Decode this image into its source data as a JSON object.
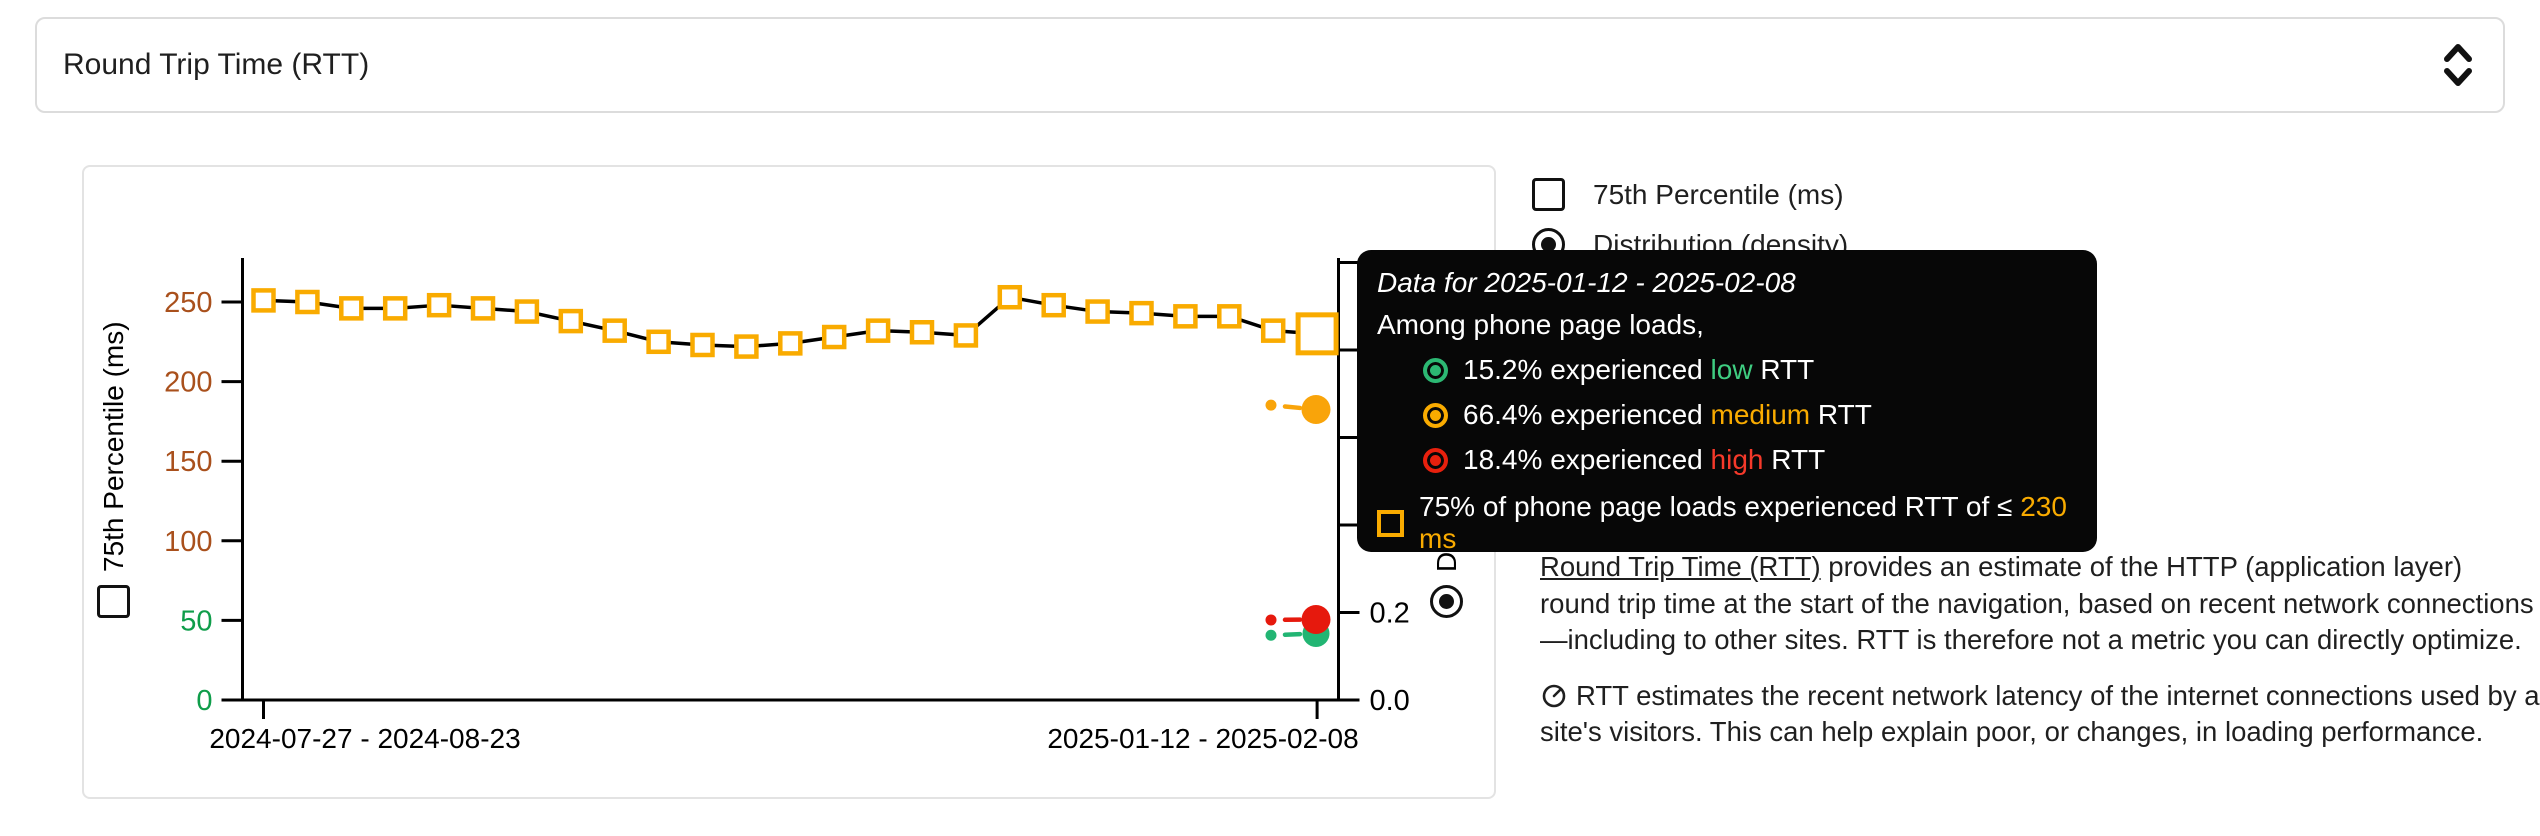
{
  "metric_selector": {
    "value": "Round Trip Time (RTT)",
    "icon": "unfold-more-icon"
  },
  "legend": {
    "items": [
      {
        "label": "75th Percentile (ms)",
        "control": "checkbox",
        "checked": false
      },
      {
        "label": "Distribution (density)",
        "control": "radio",
        "selected": true
      }
    ]
  },
  "chart_data": {
    "type": "line",
    "x_axis": {
      "tick_labels": [
        "2024-07-27 - 2024-08-23",
        "2025-01-12 - 2025-02-08"
      ],
      "tick_indices": [
        0,
        24
      ]
    },
    "y_axis_left": {
      "label": "75th Percentile (ms)",
      "range": [
        0,
        250
      ],
      "ticks": [
        {
          "label": "0",
          "value": 0,
          "rating": "low"
        },
        {
          "label": "50",
          "value": 50,
          "rating": "low"
        },
        {
          "label": "100",
          "value": 100,
          "rating": "medium"
        },
        {
          "label": "150",
          "value": 150,
          "rating": "medium"
        },
        {
          "label": "200",
          "value": 200,
          "rating": "medium"
        },
        {
          "label": "250",
          "value": 250,
          "rating": "medium"
        }
      ]
    },
    "y_axis_right": {
      "label": "Distribution (density)",
      "range": [
        0,
        1
      ],
      "ticks": [
        {
          "value": 0.0,
          "label": "0.0"
        },
        {
          "value": 0.2,
          "label": "0.2"
        },
        {
          "value": 0.4
        },
        {
          "value": 0.6
        },
        {
          "value": 0.8
        },
        {
          "value": 1.0
        }
      ]
    },
    "series": [
      {
        "name": "75th Percentile (ms)",
        "marker": "square",
        "color": "#f9ab00",
        "line_color": "#000000",
        "highlighted_index": 24,
        "values": [
          251,
          250,
          246,
          246,
          248,
          246,
          244,
          238,
          232,
          225,
          223,
          222,
          224,
          228,
          232,
          231,
          229,
          253,
          248,
          244,
          243,
          241,
          241,
          232,
          230
        ]
      }
    ],
    "density_series": [
      {
        "name": "low RTT density",
        "color": "#22b573",
        "prev": 0.148,
        "current": 0.152
      },
      {
        "name": "high RTT density",
        "color": "#e6190d",
        "prev": 0.183,
        "current": 0.184
      },
      {
        "name": "medium RTT density",
        "color": "#f9a40a",
        "prev": 0.674,
        "current": 0.664
      }
    ],
    "tick_rating_colors": {
      "low": "#0f9d4a",
      "medium": "#a9501c"
    }
  },
  "tooltip": {
    "title": "Data for 2025-01-12 - 2025-02-08",
    "subtitle": "Among phone page loads,",
    "rows": [
      {
        "pct": "15.2%",
        "mid": "experienced",
        "level": "low",
        "suffix": "RTT",
        "icon": "ring-icon",
        "color": "#2cb873"
      },
      {
        "pct": "66.4%",
        "mid": "experienced",
        "level": "medium",
        "suffix": "RTT",
        "icon": "ring-icon",
        "color": "#f9ab00"
      },
      {
        "pct": "18.4%",
        "mid": "experienced",
        "level": "high",
        "suffix": "RTT",
        "icon": "ring-icon",
        "color": "#e8200d"
      }
    ],
    "p75_row": {
      "prefix": "75% of phone page loads experienced RTT of ≤",
      "value": "230 ms",
      "icon": "square-marker-icon"
    }
  },
  "description": {
    "link_text": "Round Trip Time (RTT)",
    "para1_rest": " provides an estimate of the HTTP (application layer) round trip time at the start of the navigation, based on recent network connections—including to other sites. RTT is therefore not a metric you can directly optimize.",
    "para2_icon": "gauge-icon",
    "para2": "RTT estimates the recent network latency of the internet connections used by a site's visitors. This can help explain poor, or changes, in loading performance."
  }
}
